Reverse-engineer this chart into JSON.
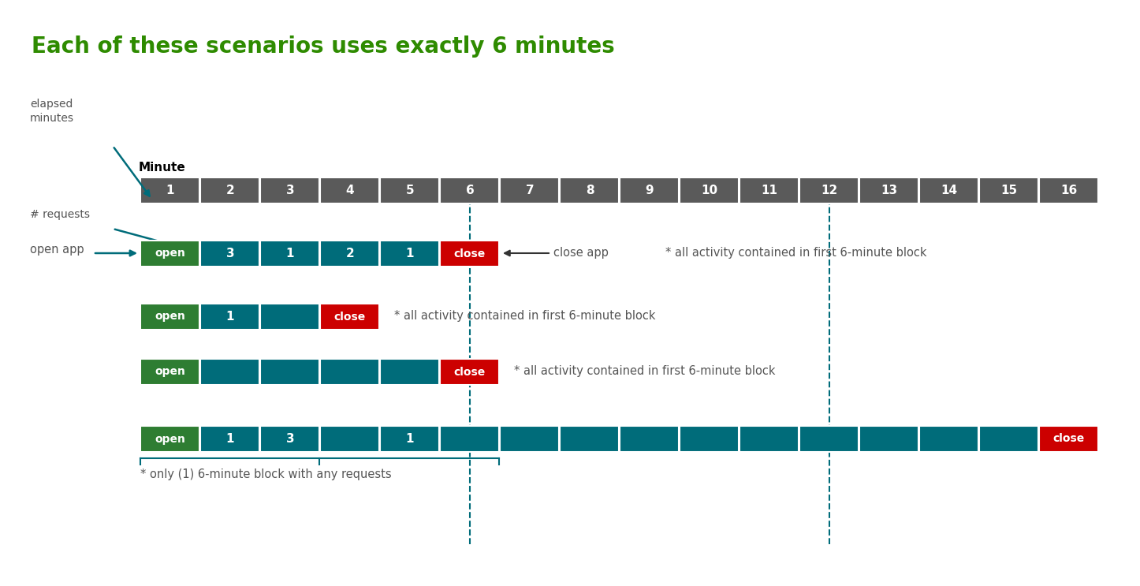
{
  "title": "Each of these scenarios uses exactly 6 minutes",
  "title_color": "#2E8B00",
  "title_fontsize": 20,
  "num_minutes": 16,
  "header_bg": "#5A5A5A",
  "teal_bg": "#006C7A",
  "green_color": "#2E7D32",
  "red_color": "#CC0000",
  "white": "#FFFFFF",
  "dashed_line_color": "#006C7A",
  "minute_label": "Minute",
  "rows": [
    {
      "cells": [
        {
          "minute": 1,
          "text": "open",
          "bg": "#2E7D32"
        },
        {
          "minute": 2,
          "text": "3",
          "bg": "#006C7A"
        },
        {
          "minute": 3,
          "text": "1",
          "bg": "#006C7A"
        },
        {
          "minute": 4,
          "text": "2",
          "bg": "#006C7A"
        },
        {
          "minute": 5,
          "text": "1",
          "bg": "#006C7A"
        },
        {
          "minute": 6,
          "text": "close",
          "bg": "#CC0000"
        }
      ],
      "label_left": "open app",
      "has_requests_label": true,
      "annotation_close_app": true,
      "annotation_text": "* all activity contained in first 6-minute block"
    },
    {
      "cells": [
        {
          "minute": 1,
          "text": "open",
          "bg": "#2E7D32"
        },
        {
          "minute": 2,
          "text": "1",
          "bg": "#006C7A"
        },
        {
          "minute": 3,
          "text": "",
          "bg": "#006C7A"
        },
        {
          "minute": 4,
          "text": "close",
          "bg": "#CC0000"
        }
      ],
      "label_left": null,
      "has_requests_label": false,
      "annotation_close_app": false,
      "annotation_text": "* all activity contained in first 6-minute block"
    },
    {
      "cells": [
        {
          "minute": 1,
          "text": "open",
          "bg": "#2E7D32"
        },
        {
          "minute": 2,
          "text": "",
          "bg": "#006C7A"
        },
        {
          "minute": 3,
          "text": "",
          "bg": "#006C7A"
        },
        {
          "minute": 4,
          "text": "",
          "bg": "#006C7A"
        },
        {
          "minute": 5,
          "text": "",
          "bg": "#006C7A"
        },
        {
          "minute": 6,
          "text": "close",
          "bg": "#CC0000"
        }
      ],
      "label_left": null,
      "has_requests_label": false,
      "annotation_close_app": false,
      "annotation_text": "* all activity contained in first 6-minute block"
    },
    {
      "cells": [
        {
          "minute": 1,
          "text": "open",
          "bg": "#2E7D32"
        },
        {
          "minute": 2,
          "text": "1",
          "bg": "#006C7A"
        },
        {
          "minute": 3,
          "text": "3",
          "bg": "#006C7A"
        },
        {
          "minute": 4,
          "text": "",
          "bg": "#006C7A"
        },
        {
          "minute": 5,
          "text": "1",
          "bg": "#006C7A"
        },
        {
          "minute": 6,
          "text": "",
          "bg": "#006C7A"
        },
        {
          "minute": 7,
          "text": "",
          "bg": "#006C7A"
        },
        {
          "minute": 8,
          "text": "",
          "bg": "#006C7A"
        },
        {
          "minute": 9,
          "text": "",
          "bg": "#006C7A"
        },
        {
          "minute": 10,
          "text": "",
          "bg": "#006C7A"
        },
        {
          "minute": 11,
          "text": "",
          "bg": "#006C7A"
        },
        {
          "minute": 12,
          "text": "",
          "bg": "#006C7A"
        },
        {
          "minute": 13,
          "text": "",
          "bg": "#006C7A"
        },
        {
          "minute": 14,
          "text": "",
          "bg": "#006C7A"
        },
        {
          "minute": 15,
          "text": "",
          "bg": "#006C7A"
        },
        {
          "minute": 16,
          "text": "close",
          "bg": "#CC0000"
        }
      ],
      "label_left": null,
      "has_requests_label": false,
      "annotation_close_app": false,
      "annotation_text": null,
      "bottom_brace": true,
      "bottom_note": "* only (1) 6-minute block with any requests"
    }
  ]
}
